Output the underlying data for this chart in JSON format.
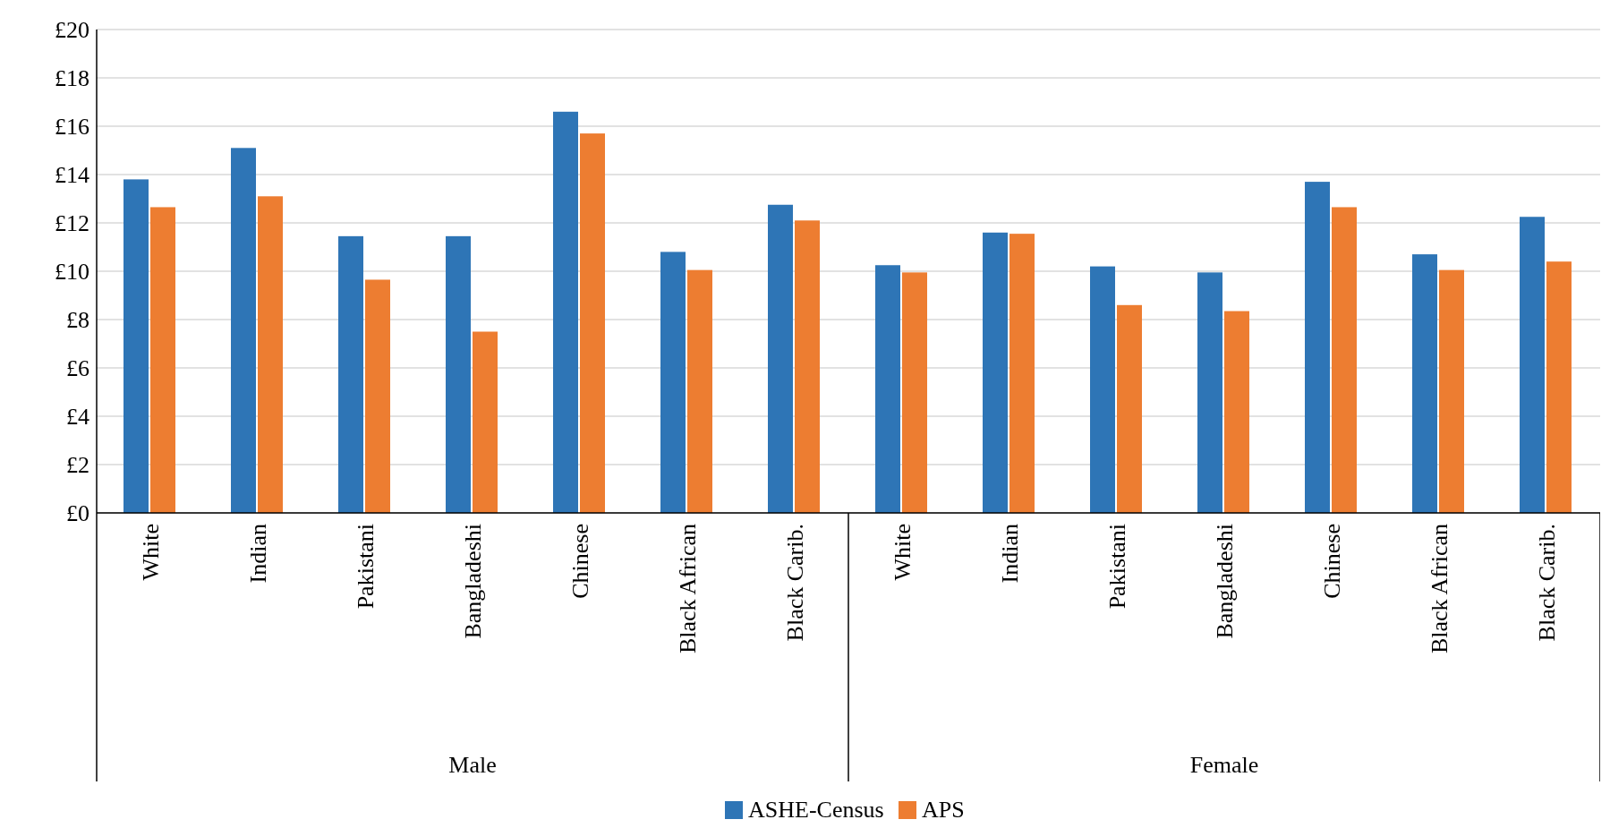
{
  "chart_data": {
    "type": "bar",
    "categories": [
      "White",
      "Indian",
      "Pakistani",
      "Bangladeshi",
      "Chinese",
      "Black African",
      "Black Carib.",
      "White",
      "Indian",
      "Pakistani",
      "Bangladeshi",
      "Chinese",
      "Black African",
      "Black Carib."
    ],
    "series": [
      {
        "name": "ASHE-Census",
        "color": "#2e75b6",
        "values": [
          13.8,
          15.1,
          11.45,
          11.45,
          16.6,
          10.8,
          12.75,
          10.25,
          11.6,
          10.2,
          9.95,
          13.7,
          10.7,
          12.25
        ]
      },
      {
        "name": "APS",
        "color": "#ed7d31",
        "values": [
          12.65,
          13.1,
          9.65,
          7.5,
          15.7,
          10.05,
          12.1,
          9.95,
          11.55,
          8.6,
          8.35,
          12.65,
          10.05,
          10.4
        ]
      }
    ],
    "ylim": [
      0,
      20
    ],
    "yticks": [
      {
        "value": 0,
        "label": "£0"
      },
      {
        "value": 2,
        "label": "£2"
      },
      {
        "value": 4,
        "label": "£4"
      },
      {
        "value": 6,
        "label": "£6"
      },
      {
        "value": 8,
        "label": "£8"
      },
      {
        "value": 10,
        "label": "£10"
      },
      {
        "value": 12,
        "label": "£12"
      },
      {
        "value": 14,
        "label": "£14"
      },
      {
        "value": 16,
        "label": "£16"
      },
      {
        "value": 18,
        "label": "£18"
      },
      {
        "value": 20,
        "label": "£20"
      }
    ],
    "grid": "y",
    "legend": "bottom",
    "annotations": [
      "Male",
      "Female"
    ]
  }
}
